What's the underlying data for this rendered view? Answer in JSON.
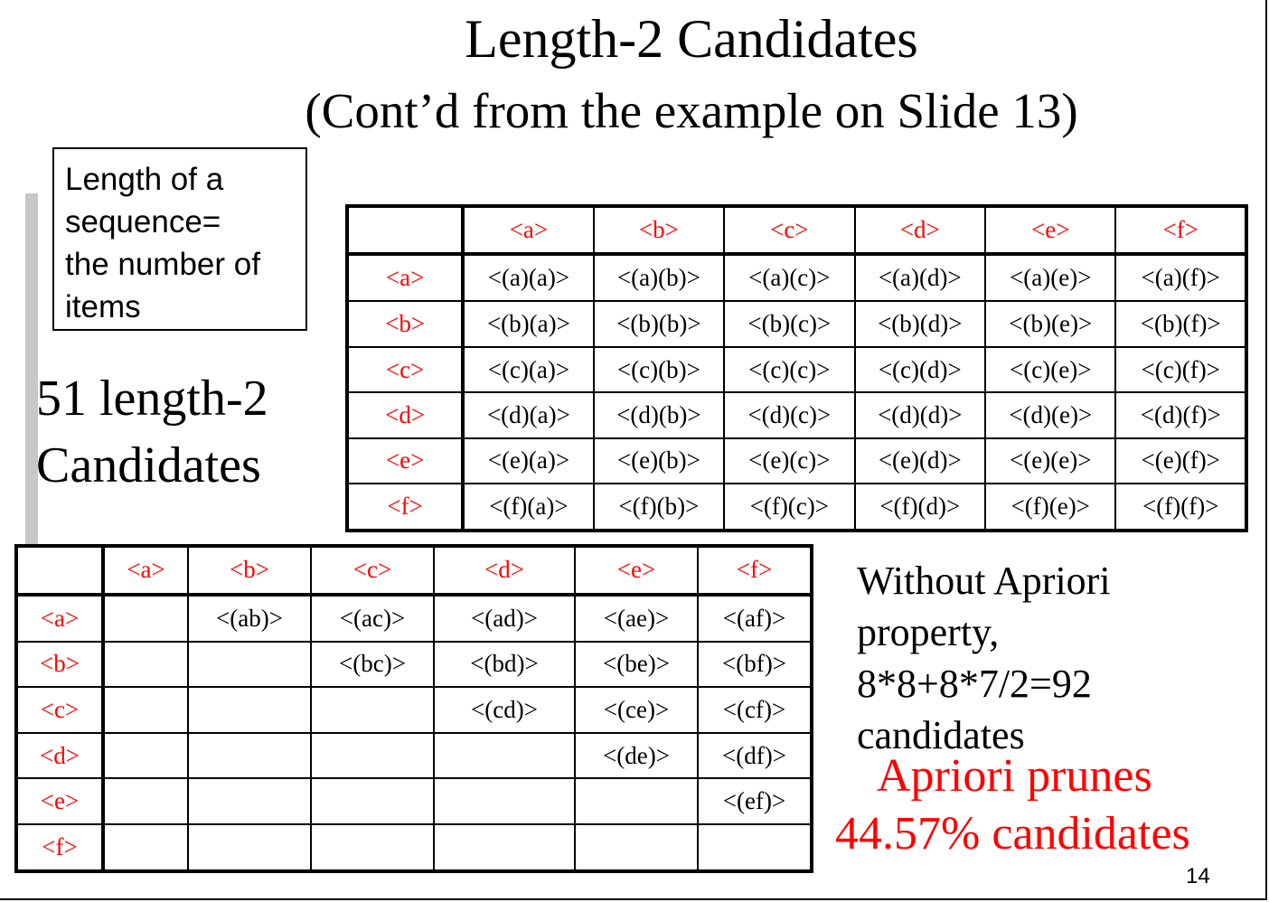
{
  "title": "Length-2 Candidates",
  "subtitle": "(Cont’d from the example on Slide 13)",
  "definition_lines": [
    "Length of a",
    "sequence=",
    "the number of",
    "items"
  ],
  "count_lines": [
    "51 length-2",
    "Candidates"
  ],
  "top_table": {
    "headers": [
      "<a>",
      "<b>",
      "<c>",
      "<d>",
      "<e>",
      "<f>"
    ],
    "rows": [
      {
        "label": "<a>",
        "cells": [
          "<(a)(a)>",
          "<(a)(b)>",
          "<(a)(c)>",
          "<(a)(d)>",
          "<(a)(e)>",
          "<(a)(f)>"
        ]
      },
      {
        "label": "<b>",
        "cells": [
          "<(b)(a)>",
          "<(b)(b)>",
          "<(b)(c)>",
          "<(b)(d)>",
          "<(b)(e)>",
          "<(b)(f)>"
        ]
      },
      {
        "label": "<c>",
        "cells": [
          "<(c)(a)>",
          "<(c)(b)>",
          "<(c)(c)>",
          "<(c)(d)>",
          "<(c)(e)>",
          "<(c)(f)>"
        ]
      },
      {
        "label": "<d>",
        "cells": [
          "<(d)(a)>",
          "<(d)(b)>",
          "<(d)(c)>",
          "<(d)(d)>",
          "<(d)(e)>",
          "<(d)(f)>"
        ]
      },
      {
        "label": "<e>",
        "cells": [
          "<(e)(a)>",
          "<(e)(b)>",
          "<(e)(c)>",
          "<(e)(d)>",
          "<(e)(e)>",
          "<(e)(f)>"
        ]
      },
      {
        "label": "<f>",
        "cells": [
          "<(f)(a)>",
          "<(f)(b)>",
          "<(f)(c)>",
          "<(f)(d)>",
          "<(f)(e)>",
          "<(f)(f)>"
        ]
      }
    ]
  },
  "bottom_table": {
    "headers": [
      "<a>",
      "<b>",
      "<c>",
      "<d>",
      "<e>",
      "<f>"
    ],
    "rows": [
      {
        "label": "<a>",
        "cells": [
          "",
          "<(ab)>",
          "<(ac)>",
          "<(ad)>",
          "<(ae)>",
          "<(af)>"
        ]
      },
      {
        "label": "<b>",
        "cells": [
          "",
          "",
          "<(bc)>",
          "<(bd)>",
          "<(be)>",
          "<(bf)>"
        ]
      },
      {
        "label": "<c>",
        "cells": [
          "",
          "",
          "",
          "<(cd)>",
          "<(ce)>",
          "<(cf)>"
        ]
      },
      {
        "label": "<d>",
        "cells": [
          "",
          "",
          "",
          "",
          "<(de)>",
          "<(df)>"
        ]
      },
      {
        "label": "<e>",
        "cells": [
          "",
          "",
          "",
          "",
          "",
          "<(ef)>"
        ]
      },
      {
        "label": "<f>",
        "cells": [
          "",
          "",
          "",
          "",
          "",
          ""
        ]
      }
    ]
  },
  "side_note_lines": [
    "Without Apriori",
    "property,",
    "8*8+8*7/2=92",
    "candidates"
  ],
  "prune_line1": "Apriori prunes",
  "prune_line2": "44.57% candidates",
  "page_number": "14",
  "colors": {
    "header_red": "#ff0000",
    "prune_red": "#ff0000",
    "sidebar_grey": "#c8c8c8"
  }
}
